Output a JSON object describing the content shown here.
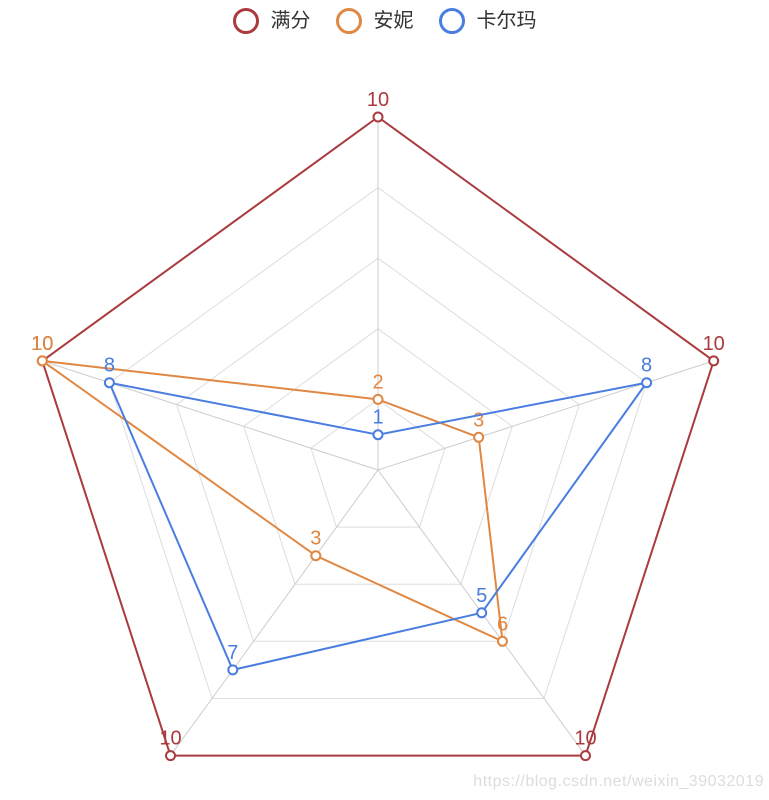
{
  "legend": {
    "items": [
      {
        "label": "满分",
        "color": "#aa3a3e"
      },
      {
        "label": "安妮",
        "color": "#e08843"
      },
      {
        "label": "卡尔玛",
        "color": "#4a7de0"
      }
    ]
  },
  "watermark": "https://blog.csdn.net/weixin_39032019",
  "chart_data": {
    "type": "radar",
    "title": "",
    "axes": 5,
    "max": 10,
    "split_number": 5,
    "grid": true,
    "legend_position": "top",
    "legend_entries": [
      "满分",
      "安妮",
      "卡尔玛"
    ],
    "indicators": [
      {
        "max": 10
      },
      {
        "max": 10
      },
      {
        "max": 10
      },
      {
        "max": 10
      },
      {
        "max": 10
      }
    ],
    "series": [
      {
        "name": "满分",
        "color": "#aa3a3e",
        "values": [
          10,
          10,
          10,
          10,
          10
        ]
      },
      {
        "name": "安妮",
        "color": "#e08843",
        "values": [
          2,
          3,
          6,
          3,
          10
        ]
      },
      {
        "name": "卡尔玛",
        "color": "#4a7de0",
        "values": [
          1,
          8,
          5,
          7,
          8
        ]
      }
    ],
    "layout": {
      "center_x": 378,
      "center_y": 470,
      "radius": 353,
      "grid_color": "#dddddd",
      "axis_color": "#cccccc",
      "line_width": 2,
      "point_radius": 4.5,
      "label_font_size": 20,
      "label_offset": 11
    }
  }
}
